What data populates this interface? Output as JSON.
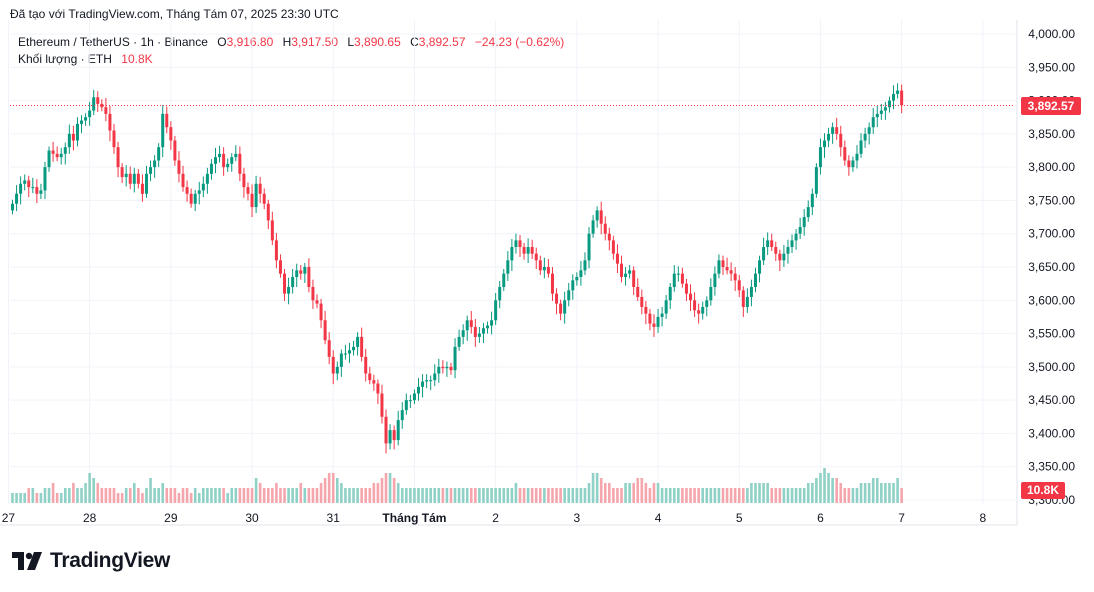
{
  "caption": "Đã tạo với TradingView.com, Tháng Tám 07, 2025 23:30 UTC",
  "legend": {
    "symbol": "Ethereum / TetherUS · 1h · Binance",
    "o_label": "O",
    "o_value": "3,916.80",
    "h_label": "H",
    "h_value": "3,917.50",
    "l_label": "L",
    "l_value": "3,890.65",
    "c_label": "C",
    "c_value": "3,892.57",
    "change": "−24.23 (−0.62%)",
    "volume_label": "Khối lượng · ETH",
    "volume_value": "10.8K"
  },
  "price_tag": "3,892.57",
  "volume_tag": "10.8K",
  "brand": "TradingView",
  "colors": {
    "up": "#089981",
    "down": "#f23645",
    "up_vol": "#8fd1c6",
    "down_vol": "#f5a6ad",
    "grid": "#f0f3fa"
  },
  "chart_data": {
    "type": "candlestick",
    "interval": "1h",
    "ylim": [
      3310,
      4015
    ],
    "y_ticks": [
      "4,000.00",
      "3,950.00",
      "3,900.00",
      "3,850.00",
      "3,800.00",
      "3,750.00",
      "3,700.00",
      "3,650.00",
      "3,600.00",
      "3,550.00",
      "3,500.00",
      "3,450.00",
      "3,400.00",
      "3,350.00",
      "3,300.00"
    ],
    "x_ticks": [
      {
        "label": "27",
        "index": -1
      },
      {
        "label": "28",
        "index": 19
      },
      {
        "label": "29",
        "index": 39
      },
      {
        "label": "30",
        "index": 59
      },
      {
        "label": "31",
        "index": 79
      },
      {
        "label": "Tháng Tám",
        "index": 99
      },
      {
        "label": "2",
        "index": 119
      },
      {
        "label": "3",
        "index": 139
      },
      {
        "label": "4",
        "index": 159
      },
      {
        "label": "5",
        "index": 179
      },
      {
        "label": "6",
        "index": 199
      },
      {
        "label": "7",
        "index": 219
      },
      {
        "label": "8",
        "index": 239
      }
    ],
    "last_close": 3892.57,
    "close_series": [
      3745,
      3760,
      3775,
      3780,
      3770,
      3770,
      3760,
      3765,
      3800,
      3825,
      3820,
      3815,
      3820,
      3830,
      3850,
      3840,
      3865,
      3870,
      3875,
      3885,
      3905,
      3895,
      3890,
      3880,
      3855,
      3830,
      3800,
      3785,
      3790,
      3775,
      3790,
      3775,
      3760,
      3790,
      3800,
      3810,
      3830,
      3880,
      3860,
      3840,
      3810,
      3790,
      3770,
      3760,
      3745,
      3760,
      3765,
      3775,
      3790,
      3805,
      3815,
      3820,
      3800,
      3805,
      3815,
      3820,
      3790,
      3770,
      3760,
      3740,
      3775,
      3760,
      3745,
      3720,
      3690,
      3660,
      3640,
      3610,
      3620,
      3635,
      3645,
      3640,
      3650,
      3620,
      3600,
      3595,
      3570,
      3540,
      3515,
      3490,
      3500,
      3520,
      3520,
      3525,
      3530,
      3545,
      3515,
      3490,
      3480,
      3475,
      3460,
      3425,
      3385,
      3405,
      3390,
      3420,
      3435,
      3450,
      3450,
      3460,
      3470,
      3478,
      3480,
      3480,
      3490,
      3500,
      3498,
      3500,
      3495,
      3530,
      3545,
      3555,
      3570,
      3560,
      3545,
      3550,
      3558,
      3562,
      3570,
      3600,
      3620,
      3640,
      3660,
      3680,
      3690,
      3680,
      3670,
      3680,
      3670,
      3660,
      3645,
      3650,
      3640,
      3610,
      3595,
      3580,
      3600,
      3615,
      3630,
      3635,
      3645,
      3660,
      3700,
      3720,
      3735,
      3715,
      3700,
      3690,
      3670,
      3655,
      3635,
      3640,
      3645,
      3620,
      3605,
      3590,
      3580,
      3565,
      3560,
      3575,
      3580,
      3600,
      3620,
      3640,
      3640,
      3625,
      3610,
      3600,
      3585,
      3580,
      3590,
      3600,
      3620,
      3640,
      3660,
      3650,
      3645,
      3640,
      3630,
      3615,
      3590,
      3605,
      3620,
      3640,
      3660,
      3680,
      3690,
      3680,
      3670,
      3660,
      3670,
      3680,
      3690,
      3700,
      3710,
      3725,
      3740,
      3760,
      3800,
      3830,
      3840,
      3850,
      3860,
      3850,
      3830,
      3810,
      3800,
      3810,
      3820,
      3840,
      3850,
      3860,
      3875,
      3880,
      3885,
      3890,
      3900,
      3910,
      3915,
      3893
    ],
    "volume_series": [
      2,
      2,
      2,
      2,
      3,
      3,
      2,
      2,
      3,
      3,
      4,
      2,
      2,
      3,
      3,
      4,
      3,
      3,
      4,
      6,
      5,
      4,
      3,
      3,
      3,
      3,
      2,
      2,
      3,
      3,
      4,
      3,
      2,
      3,
      5,
      3,
      3,
      4,
      3,
      3,
      3,
      2,
      3,
      3,
      2,
      3,
      2,
      3,
      3,
      3,
      3,
      3,
      3,
      2,
      3,
      3,
      3,
      3,
      3,
      3,
      5,
      4,
      3,
      3,
      3,
      4,
      3,
      3,
      3,
      3,
      3,
      4,
      3,
      3,
      3,
      3,
      4,
      5,
      6,
      6,
      5,
      4,
      3,
      3,
      3,
      3,
      3,
      3,
      3,
      4,
      4,
      5,
      6,
      6,
      5,
      4,
      3,
      3,
      3,
      3,
      3,
      3,
      3,
      3,
      3,
      3,
      3,
      3,
      3,
      3,
      3,
      3,
      3,
      3,
      3,
      3,
      3,
      3,
      3,
      3,
      3,
      3,
      3,
      3,
      4,
      3,
      3,
      3,
      3,
      3,
      3,
      3,
      3,
      3,
      3,
      3,
      3,
      3,
      3,
      3,
      3,
      3,
      4,
      6,
      6,
      5,
      4,
      4,
      3,
      3,
      3,
      4,
      4,
      4,
      5,
      5,
      4,
      3,
      4,
      4,
      3,
      3,
      3,
      3,
      3,
      3,
      3,
      3,
      3,
      3,
      3,
      3,
      3,
      3,
      3,
      3,
      3,
      3,
      3,
      3,
      3,
      3,
      4,
      4,
      4,
      4,
      4,
      3,
      3,
      3,
      3,
      3,
      3,
      3,
      3,
      3,
      4,
      4,
      5,
      6,
      7,
      6,
      5,
      5,
      4,
      3,
      3,
      3,
      3,
      4,
      4,
      4,
      5,
      5,
      4,
      4,
      4,
      4,
      5,
      3
    ]
  }
}
